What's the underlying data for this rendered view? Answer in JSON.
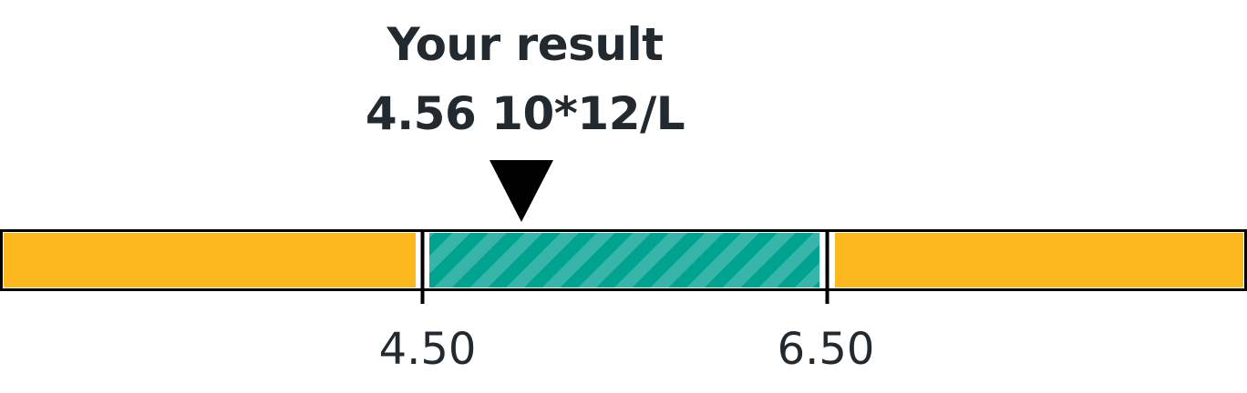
{
  "result": {
    "title": "Your result",
    "value": 4.56,
    "unit": "10*12/L",
    "display": "4.56 10*12/L"
  },
  "range": {
    "low": 4.5,
    "high": 6.5,
    "low_label": "4.50",
    "high_label": "6.50"
  },
  "colors": {
    "out_of_range": "#FDB81E",
    "in_range": "#00A290",
    "in_range_stripe": "#36B5A8",
    "outline": "#000000",
    "text": "#222A30",
    "marker": "#000000"
  },
  "icons": {
    "marker": "triangle-down-icon"
  }
}
